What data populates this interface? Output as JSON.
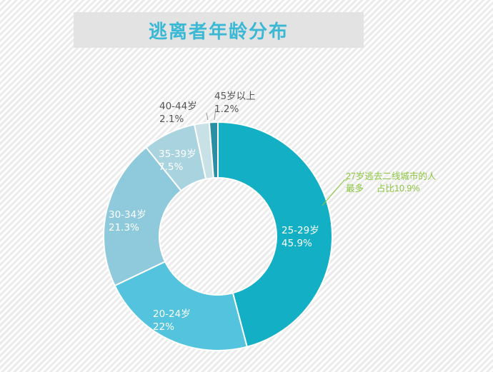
{
  "title": "逃离者年龄分布",
  "chart_data": {
    "type": "pie",
    "hole": true,
    "title": "逃离者年龄分布",
    "slices": [
      {
        "label": "25-29岁",
        "value": 45.9,
        "value_label": "45.9%",
        "color": "#13afc4"
      },
      {
        "label": "20-24岁",
        "value": 22,
        "value_label": "22%",
        "color": "#54c3dd"
      },
      {
        "label": "30-34岁",
        "value": 21.3,
        "value_label": "21.3%",
        "color": "#8ecadb"
      },
      {
        "label": "35-39岁",
        "value": 7.5,
        "value_label": "7.5%",
        "color": "#a9d3df"
      },
      {
        "label": "40-44岁",
        "value": 2.1,
        "value_label": "2.1%",
        "color": "#c8e1e7"
      },
      {
        "label": "45岁以上",
        "value": 1.2,
        "value_label": "1.2%",
        "color": "#2a8ea5"
      }
    ],
    "annotation": {
      "line1": "27岁逃去二线城市的人",
      "line2_a": "最多",
      "line2_b": "占比10.9%"
    }
  }
}
